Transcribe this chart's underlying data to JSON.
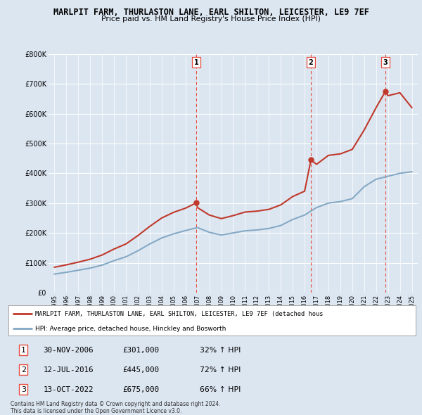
{
  "title": "MARLPIT FARM, THURLASTON LANE, EARL SHILTON, LEICESTER, LE9 7EF",
  "subtitle": "Price paid vs. HM Land Registry's House Price Index (HPI)",
  "background_color": "#dce6f1",
  "plot_bg_color": "#dce6f1",
  "ylim": [
    0,
    800000
  ],
  "yticks": [
    0,
    100000,
    200000,
    300000,
    400000,
    500000,
    600000,
    700000,
    800000
  ],
  "ytick_labels": [
    "£0",
    "£100K",
    "£200K",
    "£300K",
    "£400K",
    "£500K",
    "£600K",
    "£700K",
    "£800K"
  ],
  "xlabel_years": [
    "1995",
    "1996",
    "1997",
    "1998",
    "1999",
    "2000",
    "2001",
    "2002",
    "2003",
    "2004",
    "2005",
    "2006",
    "2007",
    "2008",
    "2009",
    "2010",
    "2011",
    "2012",
    "2013",
    "2014",
    "2015",
    "2016",
    "2017",
    "2018",
    "2019",
    "2020",
    "2021",
    "2022",
    "2023",
    "2024",
    "2025"
  ],
  "hpi_years": [
    1995,
    1996,
    1997,
    1998,
    1999,
    2000,
    2001,
    2002,
    2003,
    2004,
    2005,
    2006,
    2007,
    2008,
    2009,
    2010,
    2011,
    2012,
    2013,
    2014,
    2015,
    2016,
    2017,
    2018,
    2019,
    2020,
    2021,
    2022,
    2023,
    2024,
    2025
  ],
  "hpi_values": [
    62000,
    68000,
    75000,
    82000,
    92000,
    107000,
    120000,
    140000,
    163000,
    183000,
    197000,
    208000,
    218000,
    202000,
    193000,
    200000,
    207000,
    210000,
    215000,
    225000,
    245000,
    260000,
    285000,
    300000,
    305000,
    315000,
    355000,
    380000,
    390000,
    400000,
    405000
  ],
  "sale_dates": [
    2006.92,
    2016.53,
    2022.79
  ],
  "sale_prices": [
    301000,
    445000,
    675000
  ],
  "sale_labels": [
    "1",
    "2",
    "3"
  ],
  "red_line_x": [
    1995,
    1996,
    1997,
    1998,
    1999,
    2000,
    2001,
    2002,
    2003,
    2004,
    2005,
    2006,
    2006.92,
    2007,
    2008,
    2009,
    2010,
    2011,
    2012,
    2013,
    2014,
    2015,
    2016,
    2016.53,
    2017,
    2018,
    2019,
    2020,
    2021,
    2022,
    2022.79,
    2023,
    2024,
    2025
  ],
  "red_line_y": [
    85000,
    93000,
    102000,
    112000,
    126000,
    146000,
    163000,
    191000,
    222000,
    250000,
    269000,
    283000,
    301000,
    285000,
    260000,
    248000,
    258000,
    270000,
    273000,
    279000,
    294000,
    322000,
    340000,
    445000,
    430000,
    460000,
    465000,
    480000,
    545000,
    620000,
    675000,
    660000,
    670000,
    620000
  ],
  "legend_red_label": "MARLPIT FARM, THURLASTON LANE, EARL SHILTON, LEICESTER, LE9 7EF (detached hous",
  "legend_blue_label": "HPI: Average price, detached house, Hinckley and Bosworth",
  "table_data": [
    [
      "1",
      "30-NOV-2006",
      "£301,000",
      "32% ↑ HPI"
    ],
    [
      "2",
      "12-JUL-2016",
      "£445,000",
      "72% ↑ HPI"
    ],
    [
      "3",
      "13-OCT-2022",
      "£675,000",
      "66% ↑ HPI"
    ]
  ],
  "footer_text": "Contains HM Land Registry data © Crown copyright and database right 2024.\nThis data is licensed under the Open Government Licence v3.0.",
  "red_color": "#c0392b",
  "blue_color": "#85a9c5",
  "vline_color": "#e74c3c"
}
